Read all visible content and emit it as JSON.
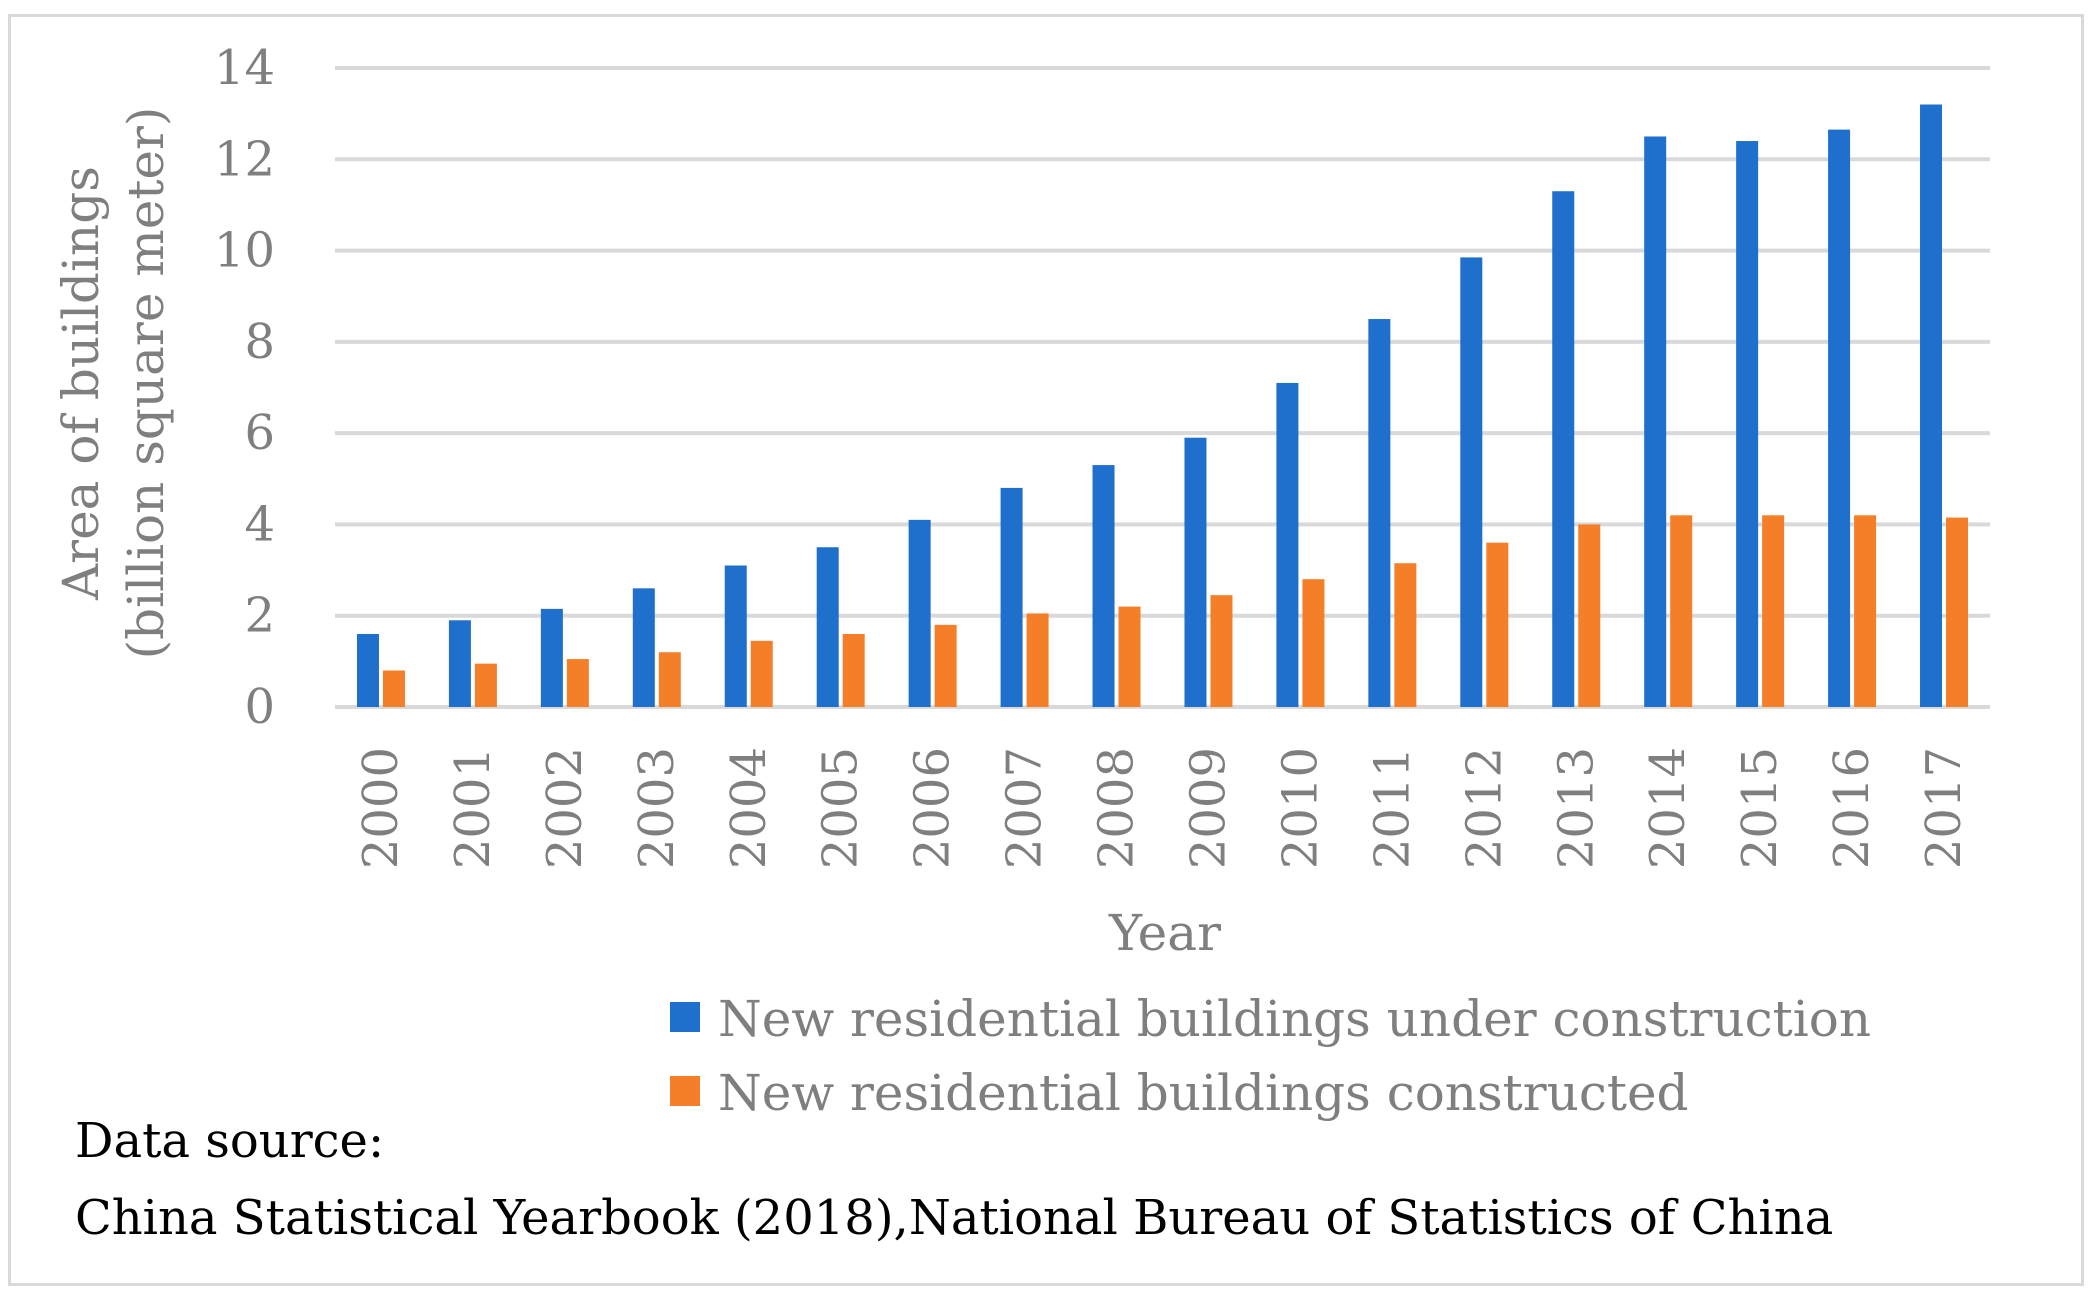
{
  "chart_data": {
    "type": "bar",
    "categories": [
      "2000",
      "2001",
      "2002",
      "2003",
      "2004",
      "2005",
      "2006",
      "2007",
      "2008",
      "2009",
      "2010",
      "2011",
      "2012",
      "2013",
      "2014",
      "2015",
      "2016",
      "2017"
    ],
    "series": [
      {
        "name": "New residential buildings under construction",
        "color": "#1f6fcc",
        "values": [
          1.6,
          1.9,
          2.15,
          2.6,
          3.1,
          3.5,
          4.1,
          4.8,
          5.3,
          5.9,
          7.1,
          8.5,
          9.85,
          11.3,
          12.5,
          12.4,
          12.65,
          13.2
        ]
      },
      {
        "name": "New residential buildings constructed",
        "color": "#f57f28",
        "values": [
          0.8,
          0.95,
          1.05,
          1.2,
          1.45,
          1.6,
          1.8,
          2.05,
          2.2,
          2.45,
          2.8,
          3.15,
          3.6,
          4.0,
          4.2,
          4.2,
          4.2,
          4.15
        ]
      }
    ],
    "title": "",
    "xlabel": "Year",
    "ylabel_line1": "Area of buildings",
    "ylabel_line2": "(billion square meter)",
    "ylim": [
      0,
      14
    ],
    "yticks": [
      0,
      2,
      4,
      6,
      8,
      10,
      12,
      14
    ],
    "grid": true,
    "legend_position": "bottom-right"
  },
  "source": {
    "line1": "Data source:",
    "line2": "China Statistical Yearbook (2018),National Bureau of Statistics of China"
  }
}
